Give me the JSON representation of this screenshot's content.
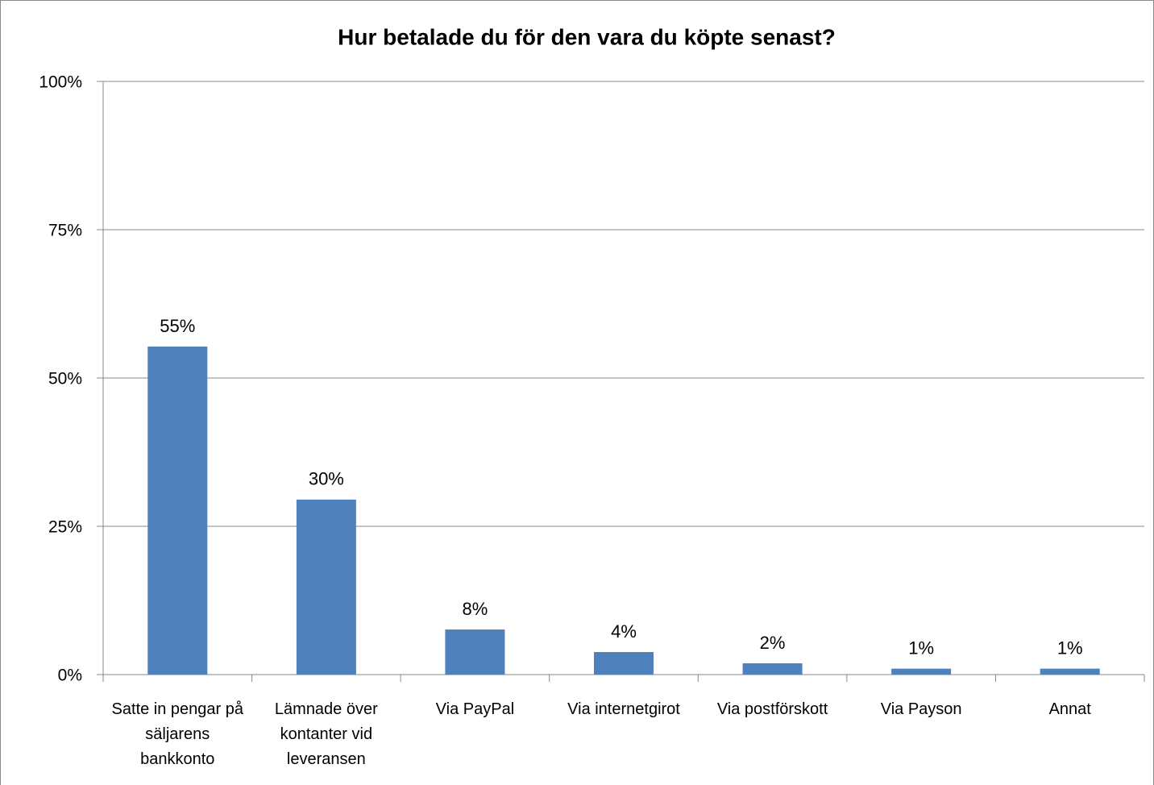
{
  "chart_data": {
    "type": "bar",
    "title": "Hur betalade du för den vara du köpte senast?",
    "categories": [
      "Satte in pengar på säljarens bankkonto",
      "Lämnade över kontanter vid leveransen",
      "Via PayPal",
      "Via internetgirot",
      "Via postförskott",
      "Via Payson",
      "Annat"
    ],
    "values": [
      55.3,
      29.5,
      7.6,
      3.8,
      1.9,
      1,
      1
    ],
    "value_labels": [
      "55%",
      "30%",
      "8%",
      "4%",
      "2%",
      "1%",
      "1%"
    ],
    "color": "#4f81bd",
    "ylim": [
      0,
      100
    ],
    "yticks": [
      {
        "value": 0,
        "label": "0%"
      },
      {
        "value": 25,
        "label": "25%"
      },
      {
        "value": 50,
        "label": "50%"
      },
      {
        "value": 75,
        "label": "75%"
      },
      {
        "value": 100,
        "label": "100%"
      }
    ],
    "grid": true
  }
}
